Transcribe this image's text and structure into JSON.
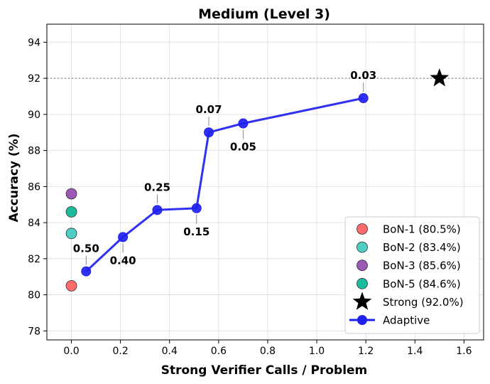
{
  "chart_data": {
    "type": "scatter",
    "title": "Medium (Level 3)",
    "xlabel": "Strong Verifier Calls / Problem",
    "ylabel": "Accuracy (%)",
    "xlim": [
      -0.1,
      1.68
    ],
    "ylim": [
      77.5,
      95
    ],
    "xticks": [
      "0.0",
      "0.2",
      "0.4",
      "0.6",
      "0.8",
      "1.0",
      "1.2",
      "1.4",
      "1.6"
    ],
    "yticks": [
      "78",
      "80",
      "82",
      "84",
      "86",
      "88",
      "90",
      "92",
      "94"
    ],
    "grid": true,
    "legend_position": "lower-right",
    "reference_line": {
      "y": 92.0,
      "style": "dotted",
      "color": "#999999"
    },
    "series": [
      {
        "name": "BoN-1 (80.5%)",
        "kind": "scatter",
        "color": "#ff6b6b",
        "points": [
          {
            "x": 0.0,
            "y": 80.5
          }
        ]
      },
      {
        "name": "BoN-2 (83.4%)",
        "kind": "scatter",
        "color": "#4ecdc4",
        "points": [
          {
            "x": 0.0,
            "y": 83.4
          }
        ]
      },
      {
        "name": "BoN-3 (85.6%)",
        "kind": "scatter",
        "color": "#9b59b6",
        "points": [
          {
            "x": 0.0,
            "y": 85.6
          }
        ]
      },
      {
        "name": "BoN-5 (84.6%)",
        "kind": "scatter",
        "color": "#1abc9c",
        "points": [
          {
            "x": 0.0,
            "y": 84.6
          }
        ]
      },
      {
        "name": "Strong (92.0%)",
        "kind": "star",
        "color": "#000000",
        "points": [
          {
            "x": 1.5,
            "y": 92.0
          }
        ]
      },
      {
        "name": "Adaptive",
        "kind": "line",
        "color": "#1f1fef",
        "points": [
          {
            "x": 0.06,
            "y": 81.3,
            "label": "0.50",
            "label_pos": "above"
          },
          {
            "x": 0.21,
            "y": 83.2,
            "label": "0.40",
            "label_pos": "below"
          },
          {
            "x": 0.35,
            "y": 84.7,
            "label": "0.25",
            "label_pos": "above"
          },
          {
            "x": 0.51,
            "y": 84.8,
            "label": "0.15",
            "label_pos": "below"
          },
          {
            "x": 0.56,
            "y": 89.0,
            "label": "0.07",
            "label_pos": "above"
          },
          {
            "x": 0.7,
            "y": 89.5,
            "label": "0.05",
            "label_pos": "below"
          },
          {
            "x": 1.19,
            "y": 90.9,
            "label": "0.03",
            "label_pos": "above"
          }
        ]
      }
    ]
  }
}
